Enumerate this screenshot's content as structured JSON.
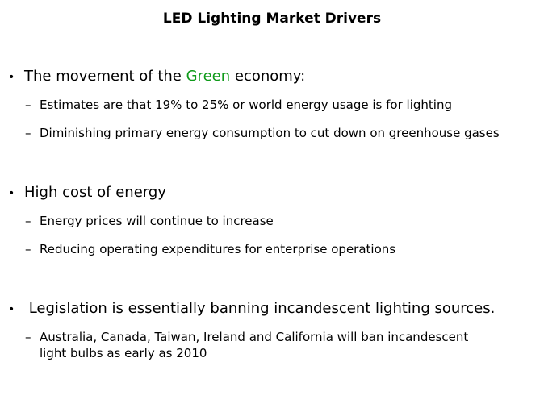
{
  "title": "LED Lighting Market Drivers",
  "bullets": [
    {
      "pre": "The movement of the ",
      "highlight": "Green",
      "post": " economy:",
      "subs": [
        "Estimates are that 19% to 25% or world energy usage is for lighting",
        "Diminishing primary energy consumption to cut down on greenhouse gases"
      ]
    },
    {
      "text": "High cost of energy",
      "subs": [
        "Energy prices will continue to increase",
        "Reducing operating expenditures for enterprise operations"
      ]
    },
    {
      "text": " Legislation is essentially banning incandescent lighting sources.",
      "subs": [
        "Australia, Canada, Taiwan, Ireland and California will ban incandescent",
        "light bulbs as early as 2010"
      ]
    }
  ],
  "colors": {
    "highlight": "#0f9a1a"
  }
}
